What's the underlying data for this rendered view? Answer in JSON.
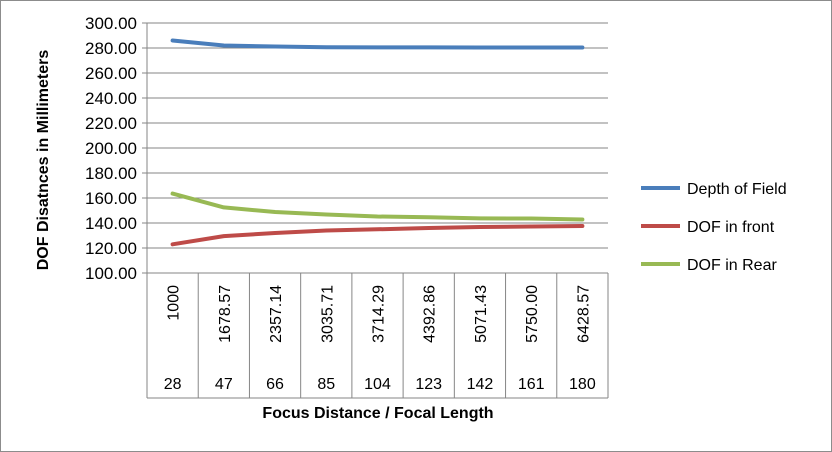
{
  "chart_data": {
    "type": "line",
    "xlabel": "Focus Distance / Focal Length",
    "ylabel": "DOF Disatnces in Millimeters",
    "ylim": [
      100,
      300
    ],
    "y_tick_labels": [
      "100.00",
      "120.00",
      "140.00",
      "160.00",
      "180.00",
      "200.00",
      "220.00",
      "240.00",
      "260.00",
      "280.00",
      "300.00"
    ],
    "x_levels": {
      "focus_distance": [
        "1000",
        "1678.57",
        "2357.14",
        "3035.71",
        "3714.29",
        "4392.86",
        "5071.43",
        "5750.00",
        "6428.57"
      ],
      "focal_length": [
        "28",
        "47",
        "66",
        "85",
        "104",
        "123",
        "142",
        "161",
        "180"
      ]
    },
    "series": [
      {
        "name": "Depth of Field",
        "color": "#4a7ebb",
        "values": [
          286.0,
          282.0,
          281.2,
          280.6,
          280.5,
          280.5,
          280.4,
          280.4,
          280.4
        ]
      },
      {
        "name": "DOF in front",
        "color": "#be4b48",
        "values": [
          123.0,
          129.5,
          132.0,
          134.0,
          135.0,
          136.0,
          136.8,
          137.2,
          137.6
        ]
      },
      {
        "name": "DOF in Rear",
        "color": "#98b954",
        "values": [
          163.5,
          152.5,
          148.8,
          146.8,
          145.2,
          144.6,
          143.7,
          143.6,
          142.8
        ]
      }
    ],
    "grid": true,
    "legend": "right"
  }
}
